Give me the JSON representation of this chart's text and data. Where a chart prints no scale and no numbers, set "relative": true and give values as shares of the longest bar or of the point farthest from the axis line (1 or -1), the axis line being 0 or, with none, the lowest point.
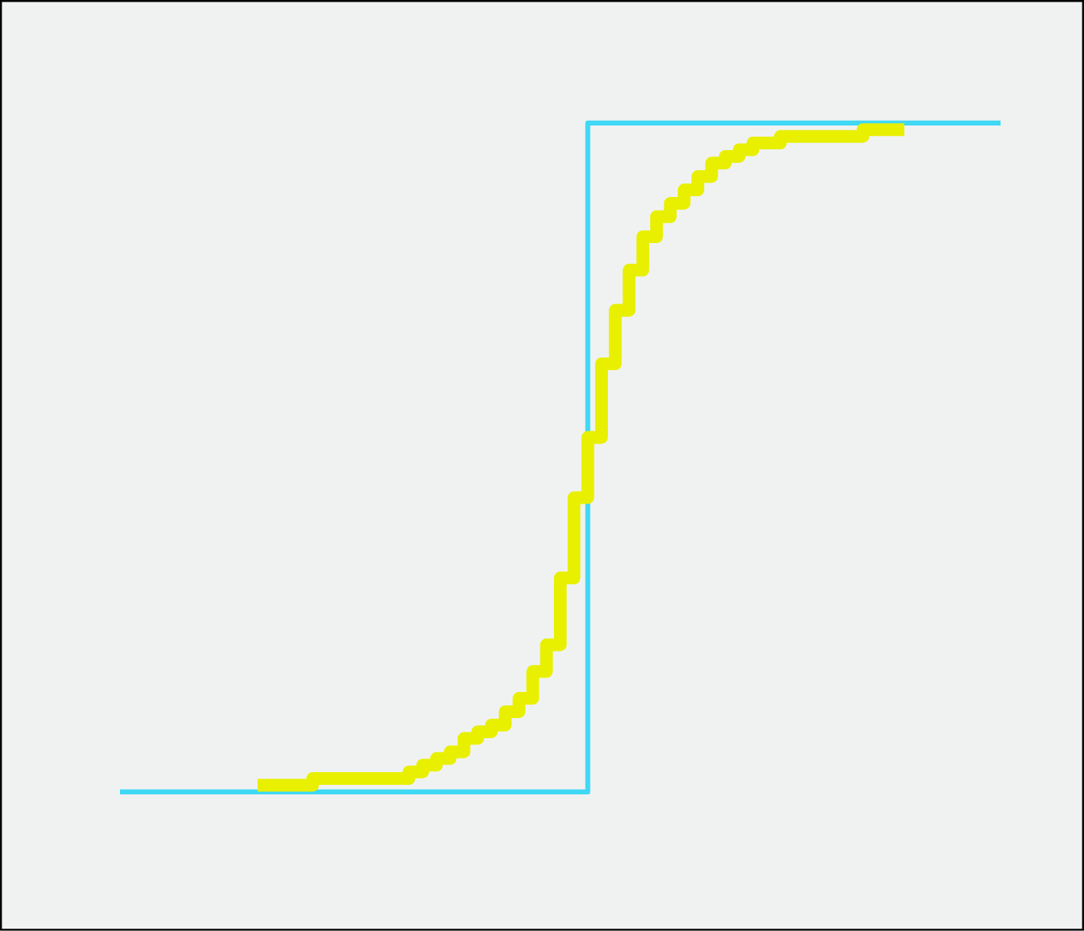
{
  "chart_data": {
    "type": "step",
    "relative": true,
    "categories": [
      null,
      null,
      null,
      null,
      null,
      null,
      null,
      null,
      null,
      null,
      null,
      null,
      null,
      null,
      null,
      null,
      null,
      null,
      null,
      null,
      null,
      null,
      null,
      null,
      null,
      null,
      null,
      null,
      null,
      null,
      null,
      null,
      null,
      null,
      null,
      null,
      null,
      null,
      null,
      null,
      null,
      null,
      null,
      null,
      null,
      null,
      null,
      null,
      null,
      null,
      null,
      null,
      null,
      null,
      null,
      null,
      null,
      null,
      null,
      null,
      null,
      null,
      null,
      null,
      null
    ],
    "series": [
      {
        "color": "#3fd8f5",
        "values": [
          0,
          0,
          0,
          0,
          0,
          0,
          0,
          0,
          0,
          0,
          0,
          0,
          0,
          0,
          0,
          0,
          0,
          0,
          0,
          0,
          0,
          0,
          0,
          0,
          0,
          0,
          0,
          0,
          0,
          0,
          0,
          0,
          0,
          0,
          1,
          1,
          1,
          1,
          1,
          1,
          1,
          1,
          1,
          1,
          1,
          1,
          1,
          1,
          1,
          1,
          1,
          1,
          1,
          1,
          1,
          1,
          1,
          1,
          1,
          1,
          1,
          1,
          1,
          1,
          1
        ]
      },
      {
        "color": "#e8f000",
        "values": [
          null,
          null,
          null,
          null,
          null,
          null,
          null,
          null,
          null,
          null,
          0.01,
          0.01,
          0.01,
          0.01,
          0.02,
          0.02,
          0.02,
          0.02,
          0.02,
          0.02,
          0.02,
          0.03,
          0.04,
          0.05,
          0.06,
          0.08,
          0.09,
          0.1,
          0.12,
          0.14,
          0.18,
          0.22,
          0.32,
          0.44,
          0.53,
          0.64,
          0.72,
          0.78,
          0.83,
          0.86,
          0.88,
          0.9,
          0.92,
          0.94,
          0.95,
          0.96,
          0.97,
          0.97,
          0.98,
          0.98,
          0.98,
          0.98,
          0.98,
          0.98,
          0.99,
          0.99,
          0.99,
          0.99,
          null,
          null,
          null,
          null,
          null,
          null,
          null
        ]
      }
    ]
  }
}
